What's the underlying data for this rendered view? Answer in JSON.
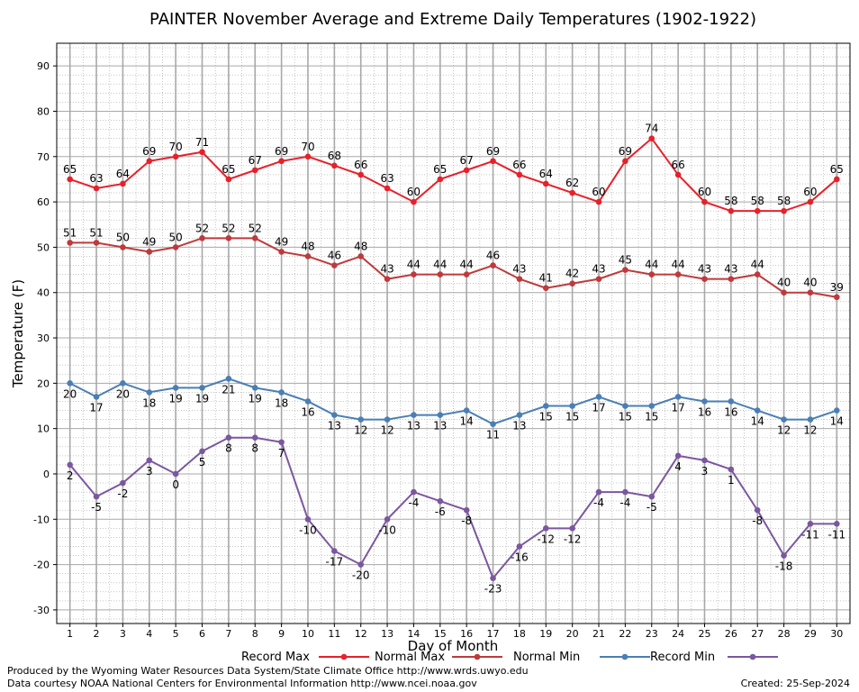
{
  "chart_data": {
    "type": "line",
    "title": "PAINTER November Average and Extreme Daily Temperatures (1902-1922)",
    "xlabel": "Day of Month",
    "ylabel": "Temperature (F)",
    "xlim": [
      0.5,
      30.5
    ],
    "ylim": [
      -33,
      95
    ],
    "yticks": [
      -30,
      -20,
      -10,
      0,
      10,
      20,
      30,
      40,
      50,
      60,
      70,
      80,
      90
    ],
    "x": [
      1,
      2,
      3,
      4,
      5,
      6,
      7,
      8,
      9,
      10,
      11,
      12,
      13,
      14,
      15,
      16,
      17,
      18,
      19,
      20,
      21,
      22,
      23,
      24,
      25,
      26,
      27,
      28,
      29,
      30
    ],
    "grid": true,
    "legend_position": "bottom",
    "series": [
      {
        "name": "Record Max",
        "color": "#e8202a",
        "label_pos": "above",
        "values": [
          65,
          63,
          64,
          69,
          70,
          71,
          65,
          67,
          69,
          70,
          68,
          66,
          63,
          60,
          65,
          67,
          69,
          66,
          64,
          62,
          60,
          69,
          74,
          66,
          60,
          58,
          58,
          58,
          60,
          65
        ]
      },
      {
        "name": "Normal Max",
        "color": "#c0393b",
        "label_pos": "above",
        "values": [
          51,
          51,
          50,
          49,
          50,
          52,
          52,
          52,
          49,
          48,
          46,
          48,
          43,
          44,
          44,
          44,
          46,
          43,
          41,
          42,
          43,
          45,
          44,
          44,
          43,
          43,
          44,
          40,
          40,
          39
        ]
      },
      {
        "name": "Normal Min",
        "color": "#4a7fb5",
        "label_pos": "below",
        "values": [
          20,
          17,
          20,
          18,
          19,
          19,
          21,
          19,
          18,
          16,
          13,
          12,
          12,
          13,
          13,
          14,
          11,
          13,
          15,
          15,
          17,
          15,
          15,
          17,
          16,
          16,
          14,
          12,
          12,
          14
        ]
      },
      {
        "name": "Record Min",
        "color": "#7b57a0",
        "label_pos": "below",
        "values": [
          2,
          -5,
          -2,
          3,
          0,
          5,
          8,
          8,
          7,
          -10,
          -17,
          -20,
          -10,
          -4,
          -6,
          -8,
          -23,
          -16,
          -12,
          -12,
          -4,
          -4,
          -5,
          4,
          3,
          1,
          -8,
          -18,
          -11,
          -11
        ]
      }
    ]
  },
  "footer": {
    "line1": "Produced by the Wyoming Water Resources Data System/State Climate Office http://www.wrds.uwyo.edu",
    "line2": "Data courtesy NOAA National Centers for Environmental Information http://www.ncei.noaa.gov",
    "created": "Created:  25-Sep-2024"
  }
}
